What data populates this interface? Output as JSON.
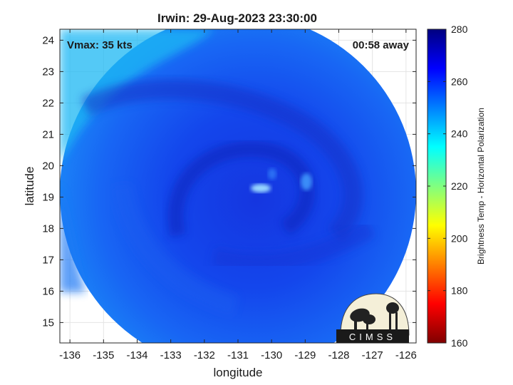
{
  "chart_data": {
    "type": "heatmap",
    "title": "Irwin: 29-Aug-2023 23:30:00",
    "xlabel": "longitude",
    "ylabel": "latitude",
    "xlim": [
      -136.3,
      -125.7
    ],
    "ylim": [
      14.35,
      24.35
    ],
    "xticks": [
      -136,
      -135,
      -134,
      -133,
      -132,
      -131,
      -130,
      -129,
      -128,
      -127,
      -126
    ],
    "yticks": [
      15,
      16,
      17,
      18,
      19,
      20,
      21,
      22,
      23,
      24
    ],
    "grid": true,
    "annotations": {
      "vmax": "Vmax: 35 kts",
      "time_away": "00:58 away"
    },
    "storm_center": {
      "lon": -130.8,
      "lat": 19.2
    },
    "colorbar": {
      "label": "Brightness Temp - Horizontal Polarization",
      "range": [
        160,
        280
      ],
      "ticks": [
        160,
        180,
        200,
        220,
        240,
        260,
        280
      ],
      "colors": [
        "#800000",
        "#ff0000",
        "#ff8000",
        "#ffff00",
        "#80ff80",
        "#00ffff",
        "#0080ff",
        "#0000ff",
        "#000080"
      ]
    },
    "logo_text": "CIMSS"
  }
}
